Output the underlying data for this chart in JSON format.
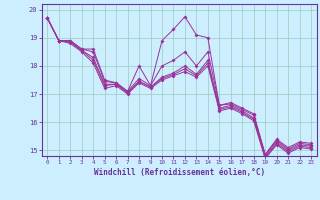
{
  "xlabel": "Windchill (Refroidissement éolien,°C)",
  "bg_color": "#cceeff",
  "line_color": "#993399",
  "grid_color": "#99ccbb",
  "axis_color": "#663399",
  "spine_color": "#663399",
  "xlim": [
    -0.5,
    23.5
  ],
  "ylim": [
    14.8,
    20.2
  ],
  "yticks": [
    15,
    16,
    17,
    18,
    19,
    20
  ],
  "xticks": [
    0,
    1,
    2,
    3,
    4,
    5,
    6,
    7,
    8,
    9,
    10,
    11,
    12,
    13,
    14,
    15,
    16,
    17,
    18,
    19,
    20,
    21,
    22,
    23
  ],
  "series": [
    [
      19.7,
      18.9,
      18.9,
      18.6,
      18.6,
      17.5,
      17.4,
      17.1,
      18.0,
      17.3,
      18.9,
      19.3,
      19.75,
      19.1,
      19.0,
      16.6,
      16.7,
      16.5,
      16.3,
      14.85,
      15.4,
      15.1,
      15.3,
      15.25
    ],
    [
      19.7,
      18.9,
      18.9,
      18.6,
      18.5,
      17.45,
      17.4,
      17.1,
      17.55,
      17.3,
      18.0,
      18.2,
      18.5,
      18.0,
      18.5,
      16.6,
      16.65,
      16.45,
      16.25,
      14.85,
      15.35,
      15.05,
      15.25,
      15.2
    ],
    [
      19.7,
      18.9,
      18.85,
      18.55,
      18.3,
      17.35,
      17.35,
      17.05,
      17.45,
      17.25,
      17.6,
      17.75,
      18.0,
      17.7,
      18.2,
      16.5,
      16.6,
      16.4,
      16.15,
      14.8,
      15.3,
      15.0,
      15.2,
      15.15
    ],
    [
      19.7,
      18.9,
      18.85,
      18.55,
      18.2,
      17.3,
      17.35,
      17.05,
      17.45,
      17.25,
      17.55,
      17.7,
      17.9,
      17.65,
      18.1,
      16.45,
      16.55,
      16.35,
      16.1,
      14.75,
      15.25,
      14.95,
      15.15,
      15.1
    ],
    [
      19.7,
      18.9,
      18.8,
      18.5,
      18.1,
      17.2,
      17.3,
      17.0,
      17.4,
      17.2,
      17.5,
      17.65,
      17.8,
      17.6,
      18.0,
      16.4,
      16.5,
      16.3,
      16.05,
      14.7,
      15.2,
      14.9,
      15.1,
      15.05
    ]
  ]
}
